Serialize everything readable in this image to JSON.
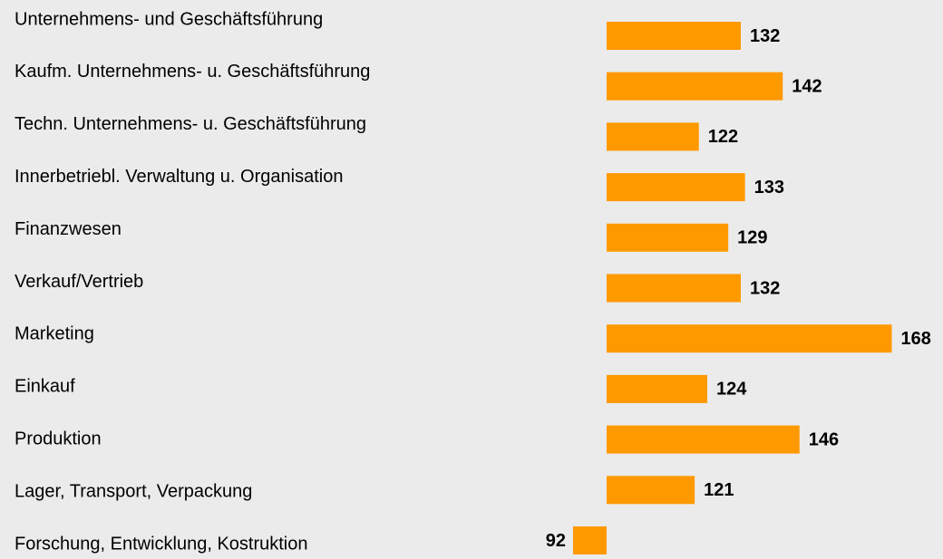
{
  "chart_data": {
    "type": "hbar",
    "categories": [
      "Unternehmens- und Geschäftsführung",
      "Kaufm. Unternehmens- u. Geschäftsführung",
      "Techn. Unternehmens- u. Geschäftsführung",
      "Innerbetriebl. Verwaltung u. Organisation",
      "Finanzwesen",
      "Verkauf/Vertrieb",
      "Marketing",
      "Einkauf",
      "Produktion",
      "Lager, Transport, Verpackung",
      "Forschung, Entwicklung, Kostruktion"
    ],
    "values": [
      132,
      142,
      122,
      133,
      129,
      132,
      168,
      124,
      146,
      121,
      92
    ],
    "color": "#ff9900",
    "base": 100,
    "xlim": [
      80,
      180
    ]
  }
}
